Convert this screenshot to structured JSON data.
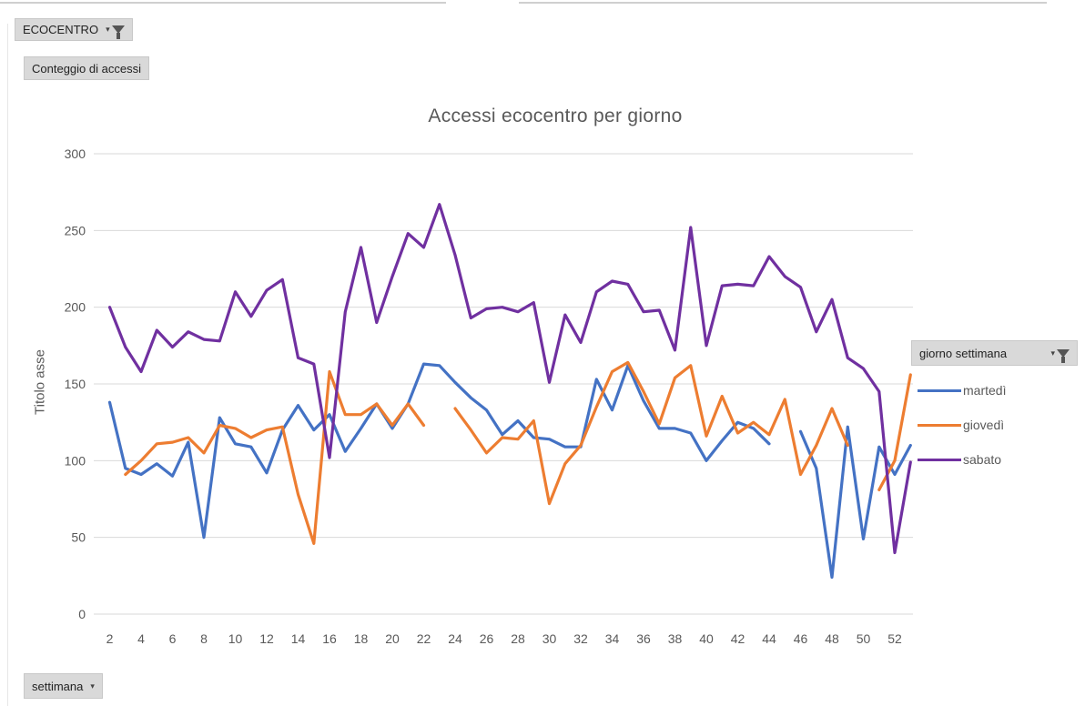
{
  "pivot": {
    "filter_field": "ECOCENTRO",
    "value_field": "Conteggio di accessi",
    "legend_field": "giorno settimana",
    "axis_field": "settimana"
  },
  "chart_data": {
    "type": "line",
    "title": "Accessi ecocentro per giorno",
    "xlabel": "",
    "ylabel": "Titolo asse",
    "ylim": [
      0,
      300
    ],
    "yticks": [
      0,
      50,
      100,
      150,
      200,
      250,
      300
    ],
    "xlim": [
      2,
      53
    ],
    "xticks": [
      2,
      4,
      6,
      8,
      10,
      12,
      14,
      16,
      18,
      20,
      22,
      24,
      26,
      28,
      30,
      32,
      34,
      36,
      38,
      40,
      42,
      44,
      46,
      48,
      50,
      52
    ],
    "grid": true,
    "legend_position": "right",
    "x": [
      2,
      3,
      4,
      5,
      6,
      7,
      8,
      9,
      10,
      11,
      12,
      13,
      14,
      15,
      16,
      17,
      18,
      19,
      20,
      21,
      22,
      23,
      24,
      25,
      26,
      27,
      28,
      29,
      30,
      31,
      32,
      33,
      34,
      35,
      36,
      37,
      38,
      39,
      40,
      41,
      42,
      43,
      44,
      45,
      46,
      47,
      48,
      49,
      50,
      51,
      52,
      53
    ],
    "series": [
      {
        "name": "martedì",
        "color": "#4472c4",
        "values": [
          138,
          95,
          91,
          98,
          90,
          112,
          50,
          128,
          111,
          109,
          92,
          120,
          136,
          120,
          130,
          106,
          121,
          137,
          121,
          137,
          163,
          162,
          151,
          141,
          133,
          117,
          126,
          115,
          114,
          109,
          109,
          153,
          133,
          162,
          139,
          121,
          121,
          118,
          100,
          113,
          125,
          121,
          111,
          null,
          119,
          95,
          24,
          122,
          49,
          109,
          91,
          110
        ]
      },
      {
        "name": "giovedì",
        "color": "#ed7d31",
        "values": [
          null,
          91,
          100,
          111,
          112,
          115,
          105,
          123,
          121,
          115,
          120,
          122,
          78,
          46,
          158,
          130,
          130,
          137,
          123,
          137,
          123,
          null,
          134,
          120,
          105,
          115,
          114,
          126,
          72,
          98,
          110,
          135,
          158,
          164,
          145,
          124,
          154,
          162,
          116,
          142,
          118,
          125,
          117,
          140,
          91,
          110,
          134,
          110,
          null,
          81,
          100,
          156
        ]
      },
      {
        "name": "sabato",
        "color": "#7030a0",
        "values": [
          200,
          174,
          158,
          185,
          174,
          184,
          179,
          178,
          210,
          194,
          211,
          218,
          167,
          163,
          102,
          197,
          239,
          190,
          220,
          248,
          239,
          267,
          234,
          193,
          199,
          200,
          197,
          203,
          151,
          195,
          177,
          210,
          217,
          215,
          197,
          198,
          172,
          252,
          175,
          214,
          215,
          214,
          233,
          220,
          213,
          184,
          205,
          167,
          160,
          145,
          40,
          99
        ]
      }
    ]
  }
}
